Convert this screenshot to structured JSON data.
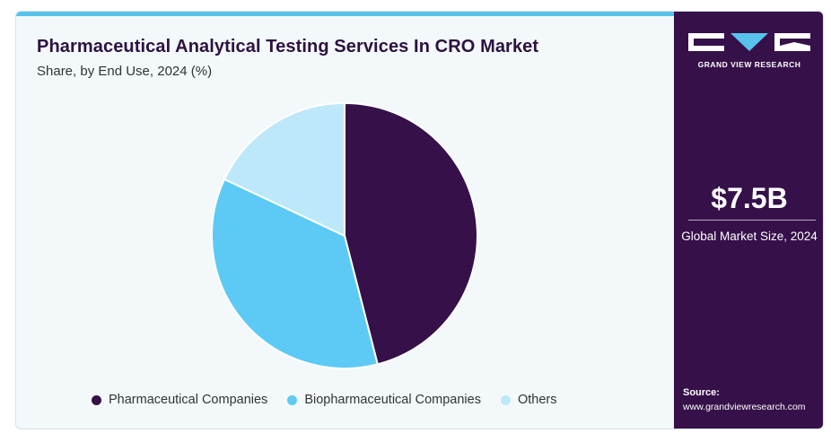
{
  "title": "Pharmaceutical Analytical Testing Services In CRO Market",
  "subtitle": "Share, by End Use, 2024 (%)",
  "colors": {
    "accent_strip": "#58c3ea",
    "sidebar_bg": "#361049",
    "pharmaceutical": "#361049",
    "biopharmaceutical": "#5ccaf5",
    "others": "#bde8f9"
  },
  "chart_data": {
    "type": "pie",
    "title": "Pharmaceutical Analytical Testing Services In CRO Market",
    "subtitle": "Share, by End Use, 2024 (%)",
    "start_angle_deg": 0,
    "direction": "clockwise",
    "legend_position": "bottom",
    "slices": [
      {
        "label": "Pharmaceutical Companies",
        "value": 46,
        "color": "#361049"
      },
      {
        "label": "Biopharmaceutical Companies",
        "value": 36,
        "color": "#5ccaf5"
      },
      {
        "label": "Others",
        "value": 18,
        "color": "#bde8f9"
      }
    ]
  },
  "legend": [
    {
      "label": "Pharmaceutical Companies",
      "color": "#361049",
      "icon": "circle-dot-icon"
    },
    {
      "label": "Biopharmaceutical Companies",
      "color": "#5ccaf5",
      "icon": "circle-dot-icon"
    },
    {
      "label": "Others",
      "color": "#bde8f9",
      "icon": "circle-dot-icon"
    }
  ],
  "sidebar": {
    "brand": "GRAND VIEW RESEARCH",
    "market_size_value": "$7.5B",
    "market_size_label": "Global Market Size, 2024",
    "source_label": "Source:",
    "source_url": "www.grandviewresearch.com"
  }
}
